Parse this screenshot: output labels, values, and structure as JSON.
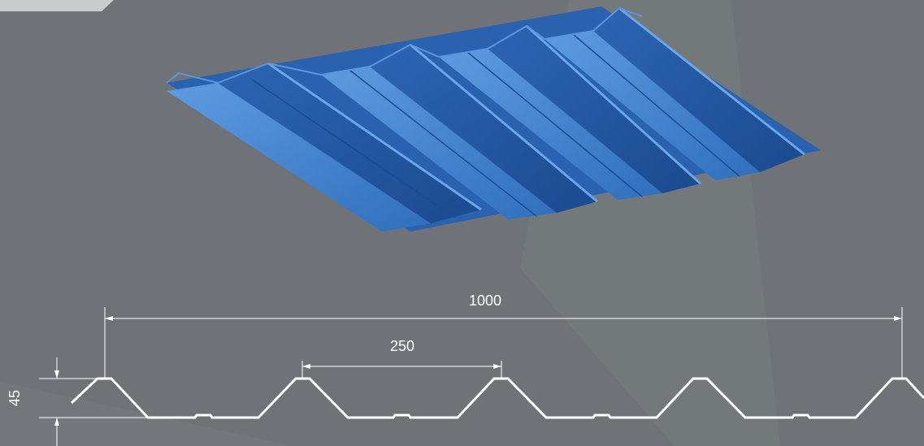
{
  "diagram": {
    "total_width_label": "1000",
    "pitch_label": "250",
    "height_label": "45"
  },
  "colors": {
    "background": "#6f7377",
    "sheet_top": "#2f72c0",
    "sheet_shadow": "#1f4f96",
    "sheet_highlight": "#4e8ddb",
    "line": "#ffffff"
  }
}
